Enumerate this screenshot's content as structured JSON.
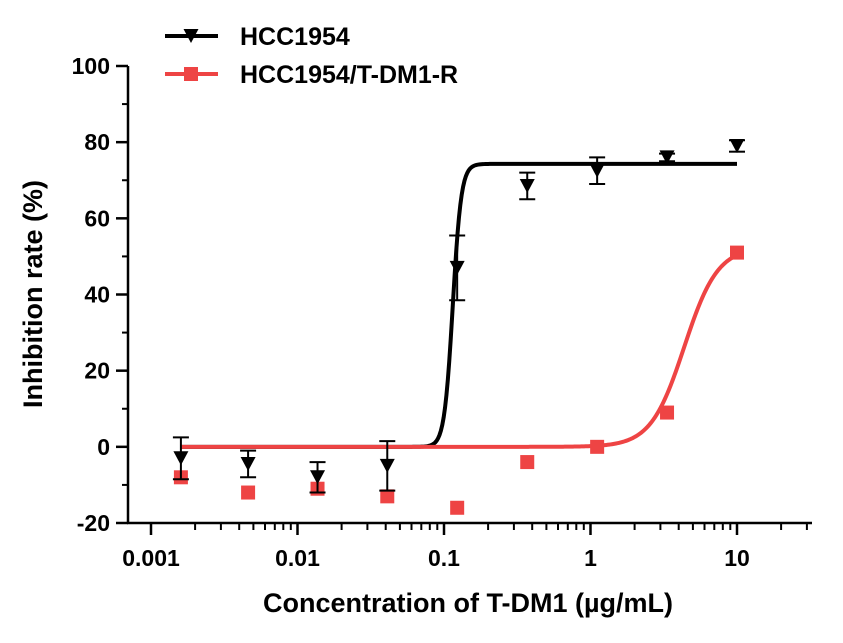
{
  "chart_data": {
    "type": "scatter",
    "title": "",
    "xlabel": "Concentration of T-DM1 (µg/mL)",
    "ylabel": "Inhibition rate (%)",
    "xscale": "log",
    "xlim": [
      0.001,
      30
    ],
    "ylim": [
      -20,
      100
    ],
    "x_ticks": [
      0.001,
      0.01,
      0.1,
      1,
      10
    ],
    "x_tick_labels": [
      "0.001",
      "0.01",
      "0.1",
      "1",
      "10"
    ],
    "y_ticks": [
      -20,
      0,
      20,
      40,
      60,
      80,
      100
    ],
    "y_tick_labels": [
      "-20",
      "0",
      "20",
      "40",
      "60",
      "80",
      "100"
    ],
    "legend_position": "top-left",
    "series": [
      {
        "name": "HCC1954",
        "color": "#000000",
        "marker": "triangle-down",
        "x": [
          0.0016,
          0.0046,
          0.0137,
          0.041,
          0.123,
          0.37,
          1.11,
          3.33,
          10
        ],
        "y": [
          -3,
          -4.5,
          -8,
          -5,
          47,
          68.5,
          72.5,
          76,
          79
        ],
        "error": [
          5.5,
          3.5,
          4,
          6.5,
          8.5,
          3.5,
          3.5,
          1,
          1.5
        ],
        "fit": {
          "bottom": 0,
          "top": 74.3,
          "log_ec50": -0.94,
          "hill": 15
        }
      },
      {
        "name": "HCC1954/T-DM1-R",
        "color": "#ee4444",
        "marker": "square",
        "x": [
          0.0016,
          0.0046,
          0.0137,
          0.041,
          0.123,
          0.37,
          1.11,
          3.33,
          10
        ],
        "y": [
          -8,
          -12,
          -11,
          -13,
          -16,
          -4,
          0,
          9,
          51
        ],
        "error": [
          0,
          0,
          0,
          0,
          0,
          0,
          0,
          0,
          0
        ],
        "fit": {
          "bottom": 0,
          "top": 52.5,
          "log_ec50": 0.64,
          "hill": 3.8
        }
      }
    ]
  }
}
